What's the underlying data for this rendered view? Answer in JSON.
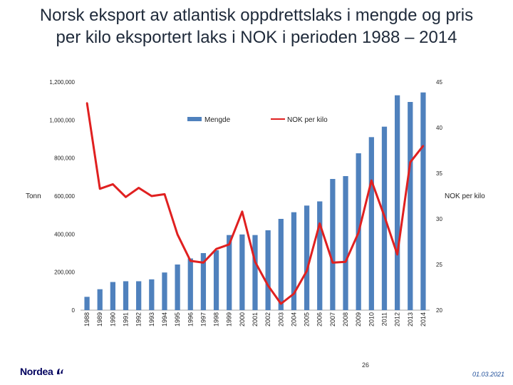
{
  "title": {
    "line1": "Norsk eksport av atlantisk oppdrettslaks i mengde og pris",
    "line2": "per kilo eksportert laks i NOK i perioden 1988 – 2014"
  },
  "chart_data": {
    "type": "bar",
    "categories": [
      "1988",
      "1989",
      "1990",
      "1991",
      "1992",
      "1993",
      "1994",
      "1995",
      "1996",
      "1997",
      "1998",
      "1999",
      "2000",
      "2001",
      "2002",
      "2003",
      "2004",
      "2005",
      "2006",
      "2007",
      "2008",
      "2009",
      "2010",
      "2011",
      "2012",
      "2013",
      "2014"
    ],
    "series": [
      {
        "name": "Mengde",
        "type": "bar",
        "axis": "left",
        "color": "#4f81bd",
        "values": [
          70000,
          110000,
          148000,
          152000,
          152000,
          162000,
          198000,
          240000,
          272000,
          300000,
          315000,
          395000,
          398000,
          395000,
          420000,
          480000,
          515000,
          550000,
          572000,
          690000,
          705000,
          825000,
          910000,
          965000,
          1130000,
          1095000,
          1145000
        ]
      },
      {
        "name": "NOK per kilo",
        "type": "line",
        "axis": "right",
        "color": "#e02020",
        "values": [
          42.7,
          33.3,
          33.8,
          32.4,
          33.4,
          32.5,
          32.7,
          28.3,
          25.4,
          25.2,
          26.7,
          27.2,
          30.8,
          25.3,
          22.7,
          20.7,
          21.8,
          24.3,
          29.5,
          25.2,
          25.3,
          28.5,
          34.2,
          30.3,
          26.1,
          36.2,
          38.0
        ]
      }
    ],
    "left_axis": {
      "label": "Tonn",
      "ylim": [
        0,
        1200000
      ],
      "ticks": [
        "0",
        "200,000",
        "400,000",
        "600,000",
        "800,000",
        "1,000,000",
        "1,200,000"
      ]
    },
    "right_axis": {
      "label": "NOK per kilo",
      "ylim": [
        20,
        45
      ],
      "ticks": [
        "20",
        "25",
        "30",
        "35",
        "40",
        "45"
      ]
    },
    "legend_position": "top-center",
    "grid": false
  },
  "footer": {
    "page_number": "26",
    "date": "01.03.2021",
    "logo_text": "Nordea"
  },
  "colors": {
    "bars": "#4f81bd",
    "line": "#e02020",
    "logo": "#00005e"
  }
}
